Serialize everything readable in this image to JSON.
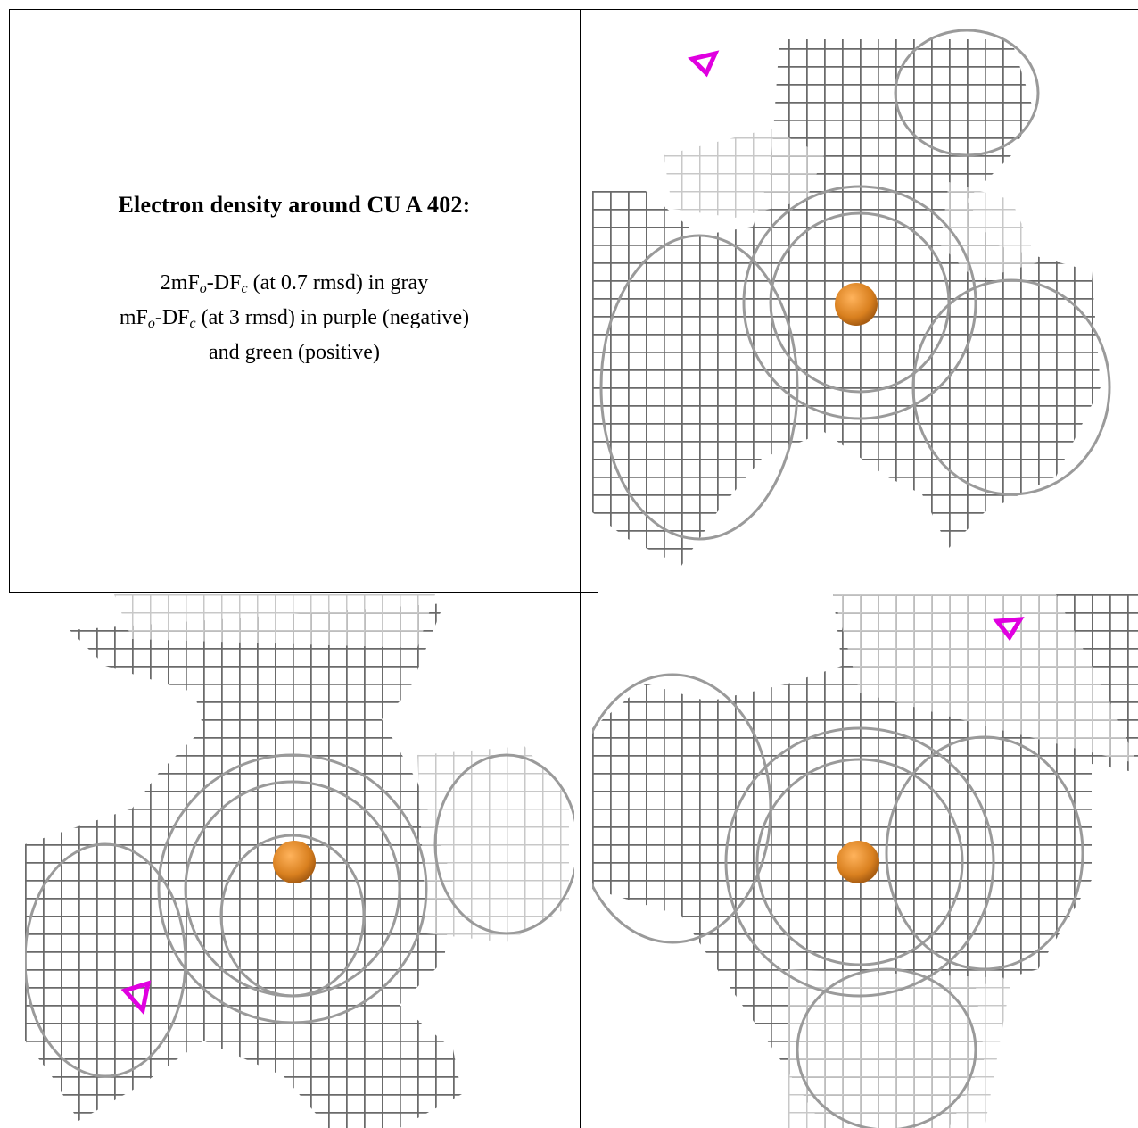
{
  "caption": {
    "title": "Electron density around CU A 402:",
    "line1": {
      "prefix": "2mF",
      "sub1": "o",
      "mid": "-DF",
      "sub2": "c",
      "suffix": " (at 0.7 rmsd) in gray"
    },
    "line2": {
      "prefix": "mF",
      "sub1": "o",
      "mid": "-DF",
      "sub2": "c",
      "suffix": " (at 3 rmsd) in purple (negative)"
    },
    "line3": "and green (positive)"
  },
  "colors": {
    "mesh_dark": "#5a5a5a",
    "mesh_mid": "#8c8c8c",
    "mesh_light": "#cfcfcf",
    "atom": "#e08a2a",
    "negative_density": "#e000e0"
  },
  "icons": [
    "copper-atom-sphere-icon",
    "negative-density-marker-icon",
    "electron-density-mesh"
  ]
}
